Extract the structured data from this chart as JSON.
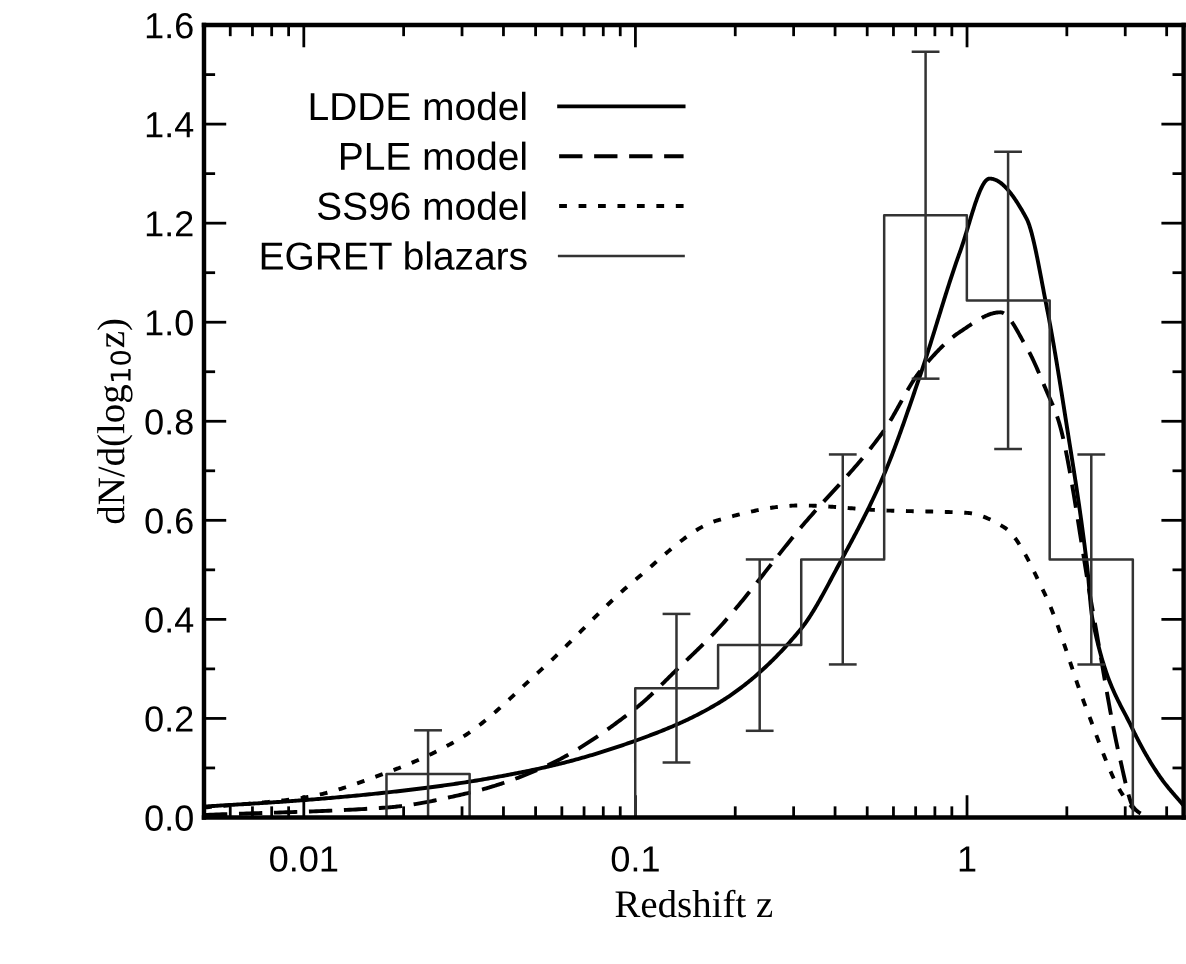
{
  "chart_data": {
    "type": "line",
    "xlabel": "Redshift z",
    "ylabel": "dN/d(log$_{10}$z)",
    "log": "x",
    "xlim": [
      0.005,
      4.5
    ],
    "xticks": [
      0.01,
      0.1,
      1
    ],
    "ylim": [
      0,
      1.6
    ],
    "yticks": [
      {
        "value": 0,
        "label": "0.0"
      },
      {
        "value": 0.2,
        "label": "0.2"
      },
      {
        "value": 0.4,
        "label": "0.4"
      },
      {
        "value": 0.6,
        "label": "0.6"
      },
      {
        "value": 0.8,
        "label": "0.8"
      },
      {
        "value": 1.0,
        "label": "1.0"
      },
      {
        "value": 1.2,
        "label": "1.2"
      },
      {
        "value": 1.4,
        "label": "1.4"
      },
      {
        "value": 1.6,
        "label": "1.6"
      }
    ],
    "grid": false,
    "legend": "top left",
    "series": [
      {
        "name": "LDDE model",
        "line_style": "solid",
        "color": "#000000",
        "x": [
          0.005,
          0.01,
          0.0235,
          0.0523,
          0.1,
          0.177,
          0.315,
          0.418,
          0.56,
          0.72,
          0.95,
          1.17,
          1.51,
          1.74,
          2.0,
          2.3,
          2.39,
          3.15,
          3.84,
          4.5
        ],
        "values": [
          0.022,
          0.035,
          0.06,
          0.1,
          0.155,
          0.23,
          0.38,
          0.52,
          0.69,
          0.89,
          1.14,
          1.29,
          1.21,
          1.03,
          0.79,
          0.51,
          0.4,
          0.18,
          0.08,
          0.024
        ]
      },
      {
        "name": "PLE model",
        "line_style": "dashed",
        "color": "#000000",
        "x": [
          0.005,
          0.0177,
          0.0316,
          0.0523,
          0.1,
          0.134,
          0.177,
          0.315,
          0.56,
          0.72,
          0.95,
          1.26,
          1.51,
          1.74,
          1.89,
          2.39,
          2.89,
          3.18,
          3.49
        ],
        "values": [
          0.005,
          0.02,
          0.05,
          0.1,
          0.22,
          0.3,
          0.38,
          0.585,
          0.78,
          0.9,
          0.98,
          1.02,
          0.95,
          0.86,
          0.8,
          0.42,
          0.12,
          0.02,
          0.0
        ]
      },
      {
        "name": "SS96 model",
        "line_style": "dotted",
        "color": "#000000",
        "x": [
          0.005,
          0.01,
          0.0177,
          0.0297,
          0.0523,
          0.1,
          0.177,
          0.315,
          0.56,
          1.0,
          1.3,
          1.72,
          2.29,
          2.89,
          3.33
        ],
        "values": [
          0.02,
          0.04,
          0.09,
          0.16,
          0.3,
          0.48,
          0.6,
          0.63,
          0.62,
          0.615,
          0.585,
          0.45,
          0.22,
          0.055,
          0.0
        ]
      },
      {
        "name": "EGRET blazars",
        "type": "step",
        "color": "#333333",
        "x": [
          0.0133,
          0.0237,
          0.0422,
          0.075,
          0.133,
          0.237,
          0.422,
          0.75,
          1.33,
          2.37,
          4.22
        ],
        "values": [
          0,
          0.088,
          0,
          0,
          0.261,
          0.348,
          0.521,
          1.216,
          1.044,
          0.521,
          0
        ],
        "errors": [
          null,
          0.088,
          null,
          null,
          0.15,
          0.173,
          0.212,
          0.33,
          0.3,
          0.212,
          null
        ]
      }
    ]
  }
}
